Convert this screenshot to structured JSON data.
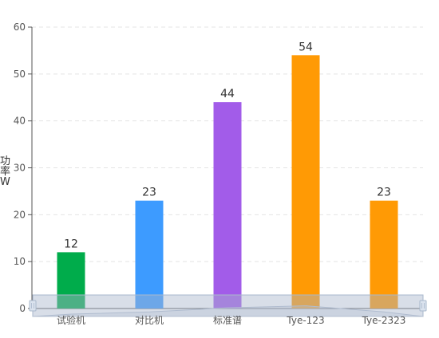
{
  "chart_data": {
    "type": "bar",
    "title": "",
    "xlabel": "",
    "ylabel": "功\n率\nW",
    "categories": [
      "试验机",
      "对比机",
      "标准谱",
      "Tye-123",
      "Tye-2323"
    ],
    "values": [
      12,
      23,
      44,
      54,
      23
    ],
    "bar_colors": [
      "#00ac4b",
      "#3d9bff",
      "#a25ce9",
      "#ff9a05",
      "#ff9a05"
    ],
    "ylim": [
      0,
      60
    ],
    "yticks": [
      0,
      10,
      20,
      30,
      40,
      50,
      60
    ],
    "grid": true,
    "data_labels": true,
    "legend": "none",
    "datazoom": {
      "position": "bottom",
      "range_percent": [
        0,
        100
      ]
    }
  },
  "colors": {
    "axis": "#555555",
    "grid": "#e4e4e4",
    "label": "#333333",
    "zoom_fill": "rgba(168,182,205,0.45)",
    "zoom_border": "#a9b8cc"
  }
}
